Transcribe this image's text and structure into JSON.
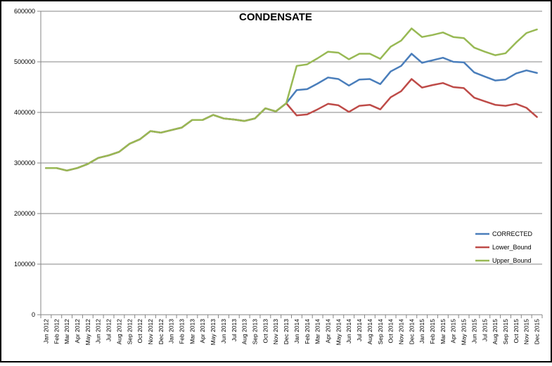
{
  "chart_data": {
    "type": "line",
    "title": "CONDENSATE",
    "xlabel": "",
    "ylabel": "",
    "ylim": [
      0,
      600000
    ],
    "yticks": [
      "0",
      "100000",
      "200000",
      "300000",
      "400000",
      "500000",
      "600000"
    ],
    "ytick_values": [
      0,
      100000,
      200000,
      300000,
      400000,
      500000,
      600000
    ],
    "grid": "horizontal",
    "legend_position": "right",
    "categories": [
      "Jan 2012",
      "Feb 2012",
      "Mar 2012",
      "Apr 2012",
      "May 2012",
      "Jun 2012",
      "Jul 2012",
      "Aug 2012",
      "Sep 2012",
      "Oct 2012",
      "Nov 2012",
      "Dec 2012",
      "Jan 2013",
      "Feb 2013",
      "Mar 2013",
      "Apr 2013",
      "May 2013",
      "Jun 2013",
      "Jul 2013",
      "Aug 2013",
      "Sep 2013",
      "Oct 2013",
      "Nov 2013",
      "Dec 2013",
      "Jan 2014",
      "Feb 2014",
      "Mar 2014",
      "Apr 2014",
      "May 2014",
      "Jun 2014",
      "Jul 2014",
      "Aug 2014",
      "Sep 2014",
      "Oct 2014",
      "Nov 2014",
      "Dec 2014",
      "Jan 2015",
      "Feb 2015",
      "Mar 2015",
      "Apr 2015",
      "May 2015",
      "Jun 2015",
      "Jul 2015",
      "Aug 2015",
      "Sep 2015",
      "Oct 2015",
      "Nov 2015",
      "Dec 2015"
    ],
    "series": [
      {
        "name": "CORRECTED",
        "color": "#4a7ebb",
        "values": [
          290000,
          290000,
          285000,
          290000,
          298000,
          310000,
          315000,
          322000,
          338000,
          347000,
          363000,
          360000,
          365000,
          370000,
          385000,
          385000,
          395000,
          388000,
          386000,
          383000,
          388000,
          408000,
          402000,
          418000,
          444000,
          446000,
          457000,
          469000,
          466000,
          453000,
          465000,
          466000,
          456000,
          481000,
          492000,
          516000,
          498000,
          503000,
          508000,
          500000,
          499000,
          479000,
          471000,
          463000,
          465000,
          477000,
          483000,
          478000
        ]
      },
      {
        "name": "Lower_Bound",
        "color": "#be4b48",
        "values": [
          290000,
          290000,
          285000,
          290000,
          298000,
          310000,
          315000,
          322000,
          338000,
          347000,
          363000,
          360000,
          365000,
          370000,
          385000,
          385000,
          395000,
          388000,
          386000,
          383000,
          388000,
          408000,
          402000,
          418000,
          394000,
          396000,
          406000,
          417000,
          414000,
          401000,
          413000,
          415000,
          406000,
          430000,
          442000,
          466000,
          449000,
          454000,
          458000,
          450000,
          448000,
          429000,
          422000,
          415000,
          413000,
          417000,
          409000,
          391000
        ]
      },
      {
        "name": "Upper_Bound",
        "color": "#98b954",
        "values": [
          290000,
          290000,
          285000,
          290000,
          298000,
          310000,
          315000,
          322000,
          338000,
          347000,
          363000,
          360000,
          365000,
          370000,
          385000,
          385000,
          395000,
          388000,
          386000,
          383000,
          388000,
          408000,
          402000,
          418000,
          492000,
          495000,
          507000,
          520000,
          518000,
          505000,
          516000,
          516000,
          506000,
          530000,
          542000,
          566000,
          549000,
          553000,
          558000,
          549000,
          547000,
          528000,
          520000,
          513000,
          517000,
          538000,
          557000,
          564000
        ]
      }
    ]
  }
}
